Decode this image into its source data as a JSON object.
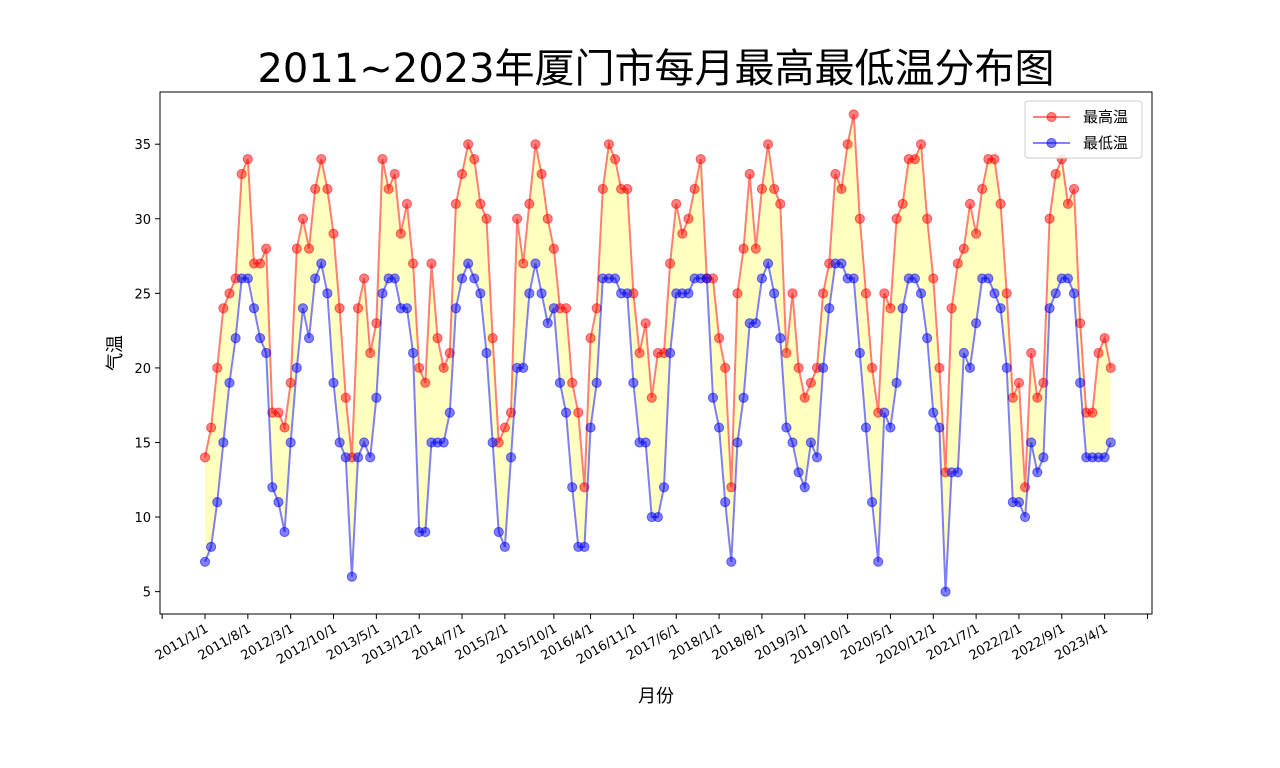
{
  "chart_data": {
    "type": "line",
    "title": "2011~2023年厦门市每月最高最低温分布图",
    "xlabel": "月份",
    "ylabel": "气温",
    "ylim": [
      3.5,
      38.5
    ],
    "y_ticks": [
      5,
      10,
      15,
      20,
      25,
      30,
      35
    ],
    "x_start": "2011/1",
    "x_tick_labels": [
      "2011/1/1",
      "2011/8/1",
      "2012/3/1",
      "2012/10/1",
      "2013/5/1",
      "2013/12/1",
      "2014/7/1",
      "2015/2/1",
      "2015/10/1",
      "2016/4/1",
      "2016/11/1",
      "2017/6/1",
      "2018/1/1",
      "2018/8/1",
      "2019/3/1",
      "2019/10/1",
      "2020/5/1",
      "2020/12/1",
      "2021/7/1",
      "2022/2/1",
      "2022/9/1",
      "2023/4/1"
    ],
    "x_tick_month_index": [
      0,
      7,
      14,
      21,
      28,
      35,
      42,
      49,
      57,
      63,
      70,
      77,
      84,
      91,
      98,
      105,
      112,
      119,
      126,
      133,
      140,
      147
    ],
    "x_minor_tick_month_index": [
      -7,
      154
    ],
    "legend": {
      "position": "upper right",
      "entries": [
        "最高温",
        "最低温"
      ]
    },
    "fill_color": "#ffffc0",
    "series": [
      {
        "name": "最高温",
        "color": "#ff0000",
        "values": [
          14,
          16,
          20,
          24,
          25,
          26,
          33,
          34,
          27,
          27,
          28,
          17,
          17,
          16,
          19,
          28,
          30,
          28,
          32,
          34,
          32,
          29,
          24,
          18,
          14,
          24,
          26,
          21,
          23,
          34,
          32,
          33,
          29,
          31,
          27,
          20,
          19,
          27,
          22,
          20,
          21,
          31,
          33,
          35,
          34,
          31,
          30,
          22,
          15,
          16,
          17,
          30,
          27,
          31,
          35,
          33,
          30,
          28,
          24,
          24,
          19,
          17,
          12,
          22,
          24,
          32,
          35,
          34,
          32,
          32,
          25,
          21,
          23,
          18,
          21,
          21,
          27,
          31,
          29,
          30,
          32,
          34,
          26,
          26,
          22,
          20,
          12,
          25,
          28,
          33,
          28,
          32,
          35,
          32,
          31,
          21,
          25,
          20,
          18,
          19,
          20,
          25,
          27,
          33,
          32,
          35,
          37,
          30,
          25,
          20,
          17,
          25,
          24,
          30,
          31,
          34,
          34,
          35,
          30,
          26,
          20,
          13,
          24,
          27,
          28,
          31,
          29,
          32,
          34,
          34,
          31,
          25,
          18,
          19,
          12,
          21,
          18,
          19,
          30,
          33,
          34,
          31,
          32,
          23,
          17,
          17,
          21,
          22,
          20
        ]
      },
      {
        "name": "最低温",
        "color": "#0000ff",
        "values": [
          7,
          8,
          11,
          15,
          19,
          22,
          26,
          26,
          24,
          22,
          21,
          12,
          11,
          9,
          15,
          20,
          24,
          22,
          26,
          27,
          25,
          19,
          15,
          14,
          6,
          14,
          15,
          14,
          18,
          25,
          26,
          26,
          24,
          24,
          21,
          9,
          9,
          15,
          15,
          15,
          17,
          24,
          26,
          27,
          26,
          25,
          21,
          15,
          9,
          8,
          14,
          20,
          20,
          25,
          27,
          25,
          23,
          24,
          19,
          17,
          12,
          8,
          8,
          16,
          19,
          26,
          26,
          26,
          25,
          25,
          19,
          15,
          15,
          10,
          10,
          12,
          21,
          25,
          25,
          25,
          26,
          26,
          26,
          18,
          16,
          11,
          7,
          15,
          18,
          23,
          23,
          26,
          27,
          25,
          22,
          16,
          15,
          13,
          12,
          15,
          14,
          20,
          24,
          27,
          27,
          26,
          26,
          21,
          16,
          11,
          7,
          17,
          16,
          19,
          24,
          26,
          26,
          25,
          22,
          17,
          16,
          5,
          13,
          13,
          21,
          20,
          23,
          26,
          26,
          25,
          24,
          20,
          11,
          11,
          10,
          15,
          13,
          14,
          24,
          25,
          26,
          26,
          25,
          19,
          14,
          14,
          14,
          14,
          15
        ]
      }
    ]
  }
}
